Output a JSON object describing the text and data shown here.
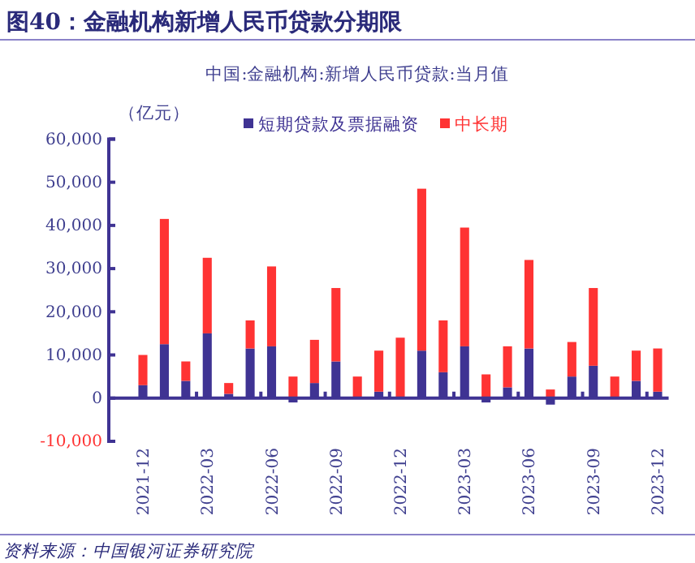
{
  "chart_data": {
    "type": "bar",
    "stacked": true,
    "title": "图40：金融机构新增人民币贷款分期限",
    "subtitle": "中国:金融机构:新增人民币贷款:当月值",
    "ylabel": "（亿元）",
    "annotations": [
      "资料来源：中国银河证券研究院"
    ],
    "categories": [
      "2021-12",
      null,
      null,
      "2022-03",
      null,
      null,
      "2022-06",
      null,
      null,
      "2022-09",
      null,
      null,
      "2022-12",
      null,
      null,
      "2023-03",
      null,
      null,
      "2023-06",
      null,
      null,
      "2023-09",
      null,
      null,
      "2023-12"
    ],
    "series": [
      {
        "name": "短期贷款及票据融资",
        "color": "#3f3393",
        "values": [
          3000,
          12500,
          4000,
          15000,
          1000,
          11500,
          12000,
          -1000,
          3500,
          8500,
          null,
          1500,
          null,
          11000,
          6000,
          12000,
          -1000,
          2500,
          11500,
          -1500,
          5000,
          7500,
          0,
          4000,
          1500
        ]
      },
      {
        "name": "中长期",
        "color": "#ff3333",
        "values": [
          7000,
          29000,
          4500,
          17500,
          2500,
          6500,
          18500,
          5000,
          10000,
          17000,
          5000,
          9500,
          14000,
          37500,
          12000,
          27500,
          5500,
          9500,
          20500,
          2000,
          8000,
          18000,
          5000,
          7000,
          10000
        ]
      }
    ],
    "ref_lines": [
      {
        "axis": "y",
        "value": 0,
        "color": "#3f3393"
      }
    ],
    "ylim": [
      -10000,
      60000
    ],
    "yticks": [
      {
        "value": -10000,
        "label": "-10,000"
      },
      0,
      {
        "value": 10000,
        "label": "10,000"
      },
      {
        "value": 20000,
        "label": "20,000"
      },
      {
        "value": 30000,
        "label": "30,000"
      },
      {
        "value": 40000,
        "label": "40,000"
      },
      {
        "value": 50000,
        "label": "50,000"
      },
      {
        "value": 60000,
        "label": "60,000"
      }
    ],
    "legend": "top",
    "grid": false
  }
}
